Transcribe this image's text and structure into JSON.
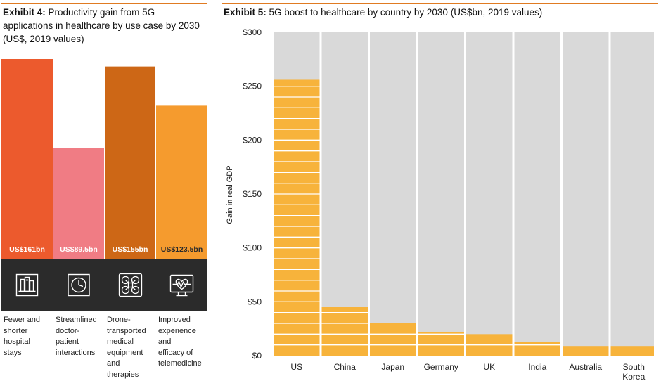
{
  "exhibit4": {
    "title_prefix": "Exhibit 4:",
    "title_text": "Productivity gain from 5G applications in healthcare by use case by 2030 (US$, 2019 values)",
    "chart_data": {
      "type": "bar",
      "title": "Productivity gain from 5G applications in healthcare by use case by 2030 (US$, 2019 values)",
      "categories": [
        "Fewer and shorter hospital stays",
        "Streamlined doctor-patient interactions",
        "Drone-transported medical equipment and therapies",
        "Improved experience and efficacy of telemedicine"
      ],
      "values": [
        161,
        89.5,
        155,
        123.5
      ],
      "unit": "US$bn",
      "data_labels": [
        "US$161bn",
        "US$89.5bn",
        "US$155bn",
        "US$123.5bn"
      ],
      "colors": [
        "#ec5a2d",
        "#f07c84",
        "#cd6716",
        "#f59b2e"
      ],
      "icons": [
        "hospital-building-icon",
        "clock-icon",
        "drone-icon",
        "heartbeat-monitor-icon"
      ],
      "legend": "none"
    },
    "usecase_lines": [
      [
        "Fewer and",
        "shorter",
        "hospital",
        "stays"
      ],
      [
        "Streamlined",
        "doctor-",
        "patient",
        "interactions"
      ],
      [
        "Drone-",
        "transported",
        "medical",
        "equipment",
        "and",
        "therapies"
      ],
      [
        "Improved",
        "experience",
        "and",
        "efficacy of",
        "telemedicine"
      ]
    ]
  },
  "exhibit5": {
    "title_prefix": "Exhibit 5:",
    "title_text": "5G boost to healthcare by country by 2030 (US$bn, 2019 values)",
    "chart_data": {
      "type": "bar",
      "title": "5G boost to healthcare by country by 2030 (US$bn, 2019 values)",
      "categories": [
        "US",
        "China",
        "Japan",
        "Germany",
        "UK",
        "India",
        "Australia",
        "South Korea"
      ],
      "category_lines": [
        [
          "US"
        ],
        [
          "China"
        ],
        [
          "Japan"
        ],
        [
          "Germany"
        ],
        [
          "UK"
        ],
        [
          "India"
        ],
        [
          "Australia"
        ],
        [
          "South",
          "Korea"
        ]
      ],
      "values": [
        256,
        45,
        30,
        22,
        20,
        13,
        9,
        9
      ],
      "ylabel": "Gain in real GDP",
      "ylim": [
        0,
        300
      ],
      "yticks": [
        0,
        50,
        100,
        150,
        200,
        250,
        300
      ],
      "ytick_labels": [
        "$0",
        "$50",
        "$100",
        "$150",
        "$200",
        "$250",
        "$300"
      ],
      "bar_color": "#f7b33b",
      "background_color": "#d9d9d9",
      "segment_line_color": "#ffffff",
      "grid": false,
      "legend": "none"
    }
  }
}
